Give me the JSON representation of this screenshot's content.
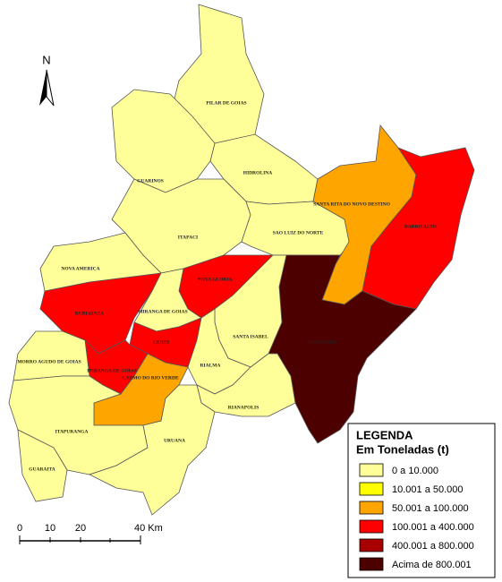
{
  "north": "N",
  "regions": [
    {
      "name": "PILAR DE GOIAS",
      "color": "#ffff99"
    },
    {
      "name": "HIDROLINA",
      "color": "#ffff99"
    },
    {
      "name": "GUARINOS",
      "color": "#ffff99"
    },
    {
      "name": "ITAPACI",
      "color": "#ffff99"
    },
    {
      "name": "SAO LUIZ DO NORTE",
      "color": "#ffff99"
    },
    {
      "name": "SANTA RITA DO NOVO DESTINO",
      "color": "#ffa500"
    },
    {
      "name": "BARRO ALTO",
      "color": "#ff0000"
    },
    {
      "name": "GOIANESIA",
      "color": "#4d0000"
    },
    {
      "name": "NOVA GLORIA",
      "color": "#ff0000"
    },
    {
      "name": "RUBIATABA",
      "color": "#ff0000"
    },
    {
      "name": "NOVA AMERICA",
      "color": "#ffff99"
    },
    {
      "name": "MIRANGA DE GOIAS",
      "color": "#ffff99"
    },
    {
      "name": "CERES",
      "color": "#ff0000"
    },
    {
      "name": "IPIRANGA DE GOIAS",
      "color": "#ff0000"
    },
    {
      "name": "CARMO DO RIO VERDE",
      "color": "#ffa500"
    },
    {
      "name": "SANTA ISABEL",
      "color": "#ffff99"
    },
    {
      "name": "RIALMA",
      "color": "#ffff99"
    },
    {
      "name": "RIANAPOLIS",
      "color": "#ffff99"
    },
    {
      "name": "MORRO AGUDO DE GOIAS",
      "color": "#ffff99"
    },
    {
      "name": "ITAPURANGA",
      "color": "#ffff99"
    },
    {
      "name": "GUARAITA",
      "color": "#ffff99"
    },
    {
      "name": "URUANA",
      "color": "#ffff99"
    }
  ],
  "legend": {
    "title": "LEGENDA",
    "subtitle": "Em Toneladas (t)",
    "items": [
      {
        "label": "0 a 10.000",
        "color": "#ffff99"
      },
      {
        "label": "10.001 a 50.000",
        "color": "#ffff00"
      },
      {
        "label": "50.001 a 100.000",
        "color": "#ffa500"
      },
      {
        "label": "100.001 a 400.000",
        "color": "#ff0000"
      },
      {
        "label": "400.001 a 800.000",
        "color": "#a80000"
      },
      {
        "label": "Acima de 800.001",
        "color": "#4d0000"
      }
    ]
  },
  "scale_bar": {
    "labels": [
      "0",
      "10",
      "20",
      "40 Km"
    ]
  }
}
